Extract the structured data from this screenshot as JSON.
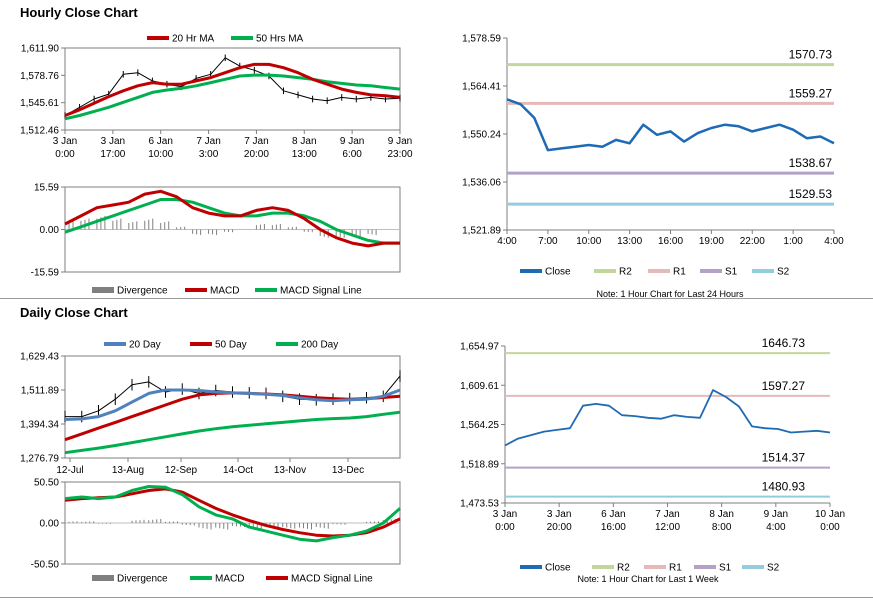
{
  "hourly": {
    "title": "Hourly Close Chart",
    "price": {
      "legend": [
        "20 Hr MA",
        "50 Hrs MA"
      ],
      "y_ticks": [
        "1,611.90",
        "1,578.76",
        "1,545.61",
        "1,512.46"
      ],
      "x_ticks": [
        [
          "3 Jan",
          "0:00"
        ],
        [
          "3 Jan",
          "17:00"
        ],
        [
          "6 Jan",
          "10:00"
        ],
        [
          "7 Jan",
          "3:00"
        ],
        [
          "7 Jan",
          "20:00"
        ],
        [
          "8 Jan",
          "13:00"
        ],
        [
          "9 Jan",
          "6:00"
        ],
        [
          "9 Jan",
          "23:00"
        ]
      ]
    },
    "macd": {
      "y_ticks": [
        "15.59",
        "0.00",
        "-15.59"
      ],
      "legend": [
        "Divergence",
        "MACD",
        "MACD Signal Line"
      ]
    },
    "pivot": {
      "y_ticks": [
        "1,578.59",
        "1,564.41",
        "1,550.24",
        "1,536.06",
        "1,521.89"
      ],
      "x_ticks": [
        "4:00",
        "7:00",
        "10:00",
        "13:00",
        "16:00",
        "19:00",
        "22:00",
        "1:00",
        "4:00"
      ],
      "levels": [
        {
          "name": "R2",
          "label": "1570.73",
          "value": 1570.73,
          "color": "#c3d69b"
        },
        {
          "name": "R1",
          "label": "1559.27",
          "value": 1559.27,
          "color": "#e6b9b8"
        },
        {
          "name": "S1",
          "label": "1538.67",
          "value": 1538.67,
          "color": "#b3a2c7"
        },
        {
          "name": "S2",
          "label": "1529.53",
          "value": 1529.53,
          "color": "#93cddd"
        }
      ],
      "legend": [
        "Close",
        "R2",
        "R1",
        "S1",
        "S2"
      ],
      "note": "Note: 1 Hour Chart for Last 24 Hours"
    }
  },
  "daily": {
    "title": "Daily Close Chart",
    "price": {
      "legend": [
        "20 Day",
        "50 Day",
        "200 Day"
      ],
      "y_ticks": [
        "1,629.43",
        "1,511.89",
        "1,394.34",
        "1,276.79"
      ],
      "x_ticks": [
        "12-Jul",
        "13-Aug",
        "12-Sep",
        "14-Oct",
        "13-Nov",
        "13-Dec"
      ]
    },
    "macd": {
      "y_ticks": [
        "50.50",
        "0.00",
        "-50.50"
      ],
      "legend": [
        "Divergence",
        "MACD",
        "MACD Signal Line"
      ]
    },
    "pivot": {
      "y_ticks": [
        "1,654.97",
        "1,609.61",
        "1,564.25",
        "1,518.89",
        "1,473.53"
      ],
      "x_ticks": [
        [
          "3 Jan",
          "0:00"
        ],
        [
          "3 Jan",
          "20:00"
        ],
        [
          "6 Jan",
          "16:00"
        ],
        [
          "7 Jan",
          "12:00"
        ],
        [
          "8 Jan",
          "8:00"
        ],
        [
          "9 Jan",
          "4:00"
        ],
        [
          "10 Jan",
          "0:00"
        ]
      ],
      "levels": [
        {
          "name": "R2",
          "label": "1646.73",
          "value": 1646.73,
          "color": "#c3d69b"
        },
        {
          "name": "R1",
          "label": "1597.27",
          "value": 1597.27,
          "color": "#e6b9b8"
        },
        {
          "name": "S1",
          "label": "1514.37",
          "value": 1514.37,
          "color": "#b3a2c7"
        },
        {
          "name": "S2",
          "label": "1480.93",
          "value": 1480.93,
          "color": "#93cddd"
        }
      ],
      "legend": [
        "Close",
        "R2",
        "R1",
        "S1",
        "S2"
      ],
      "note": "Note: 1 Hour Chart for Last 1 Week"
    }
  },
  "chart_data": [
    {
      "type": "line",
      "ylim": [
        1512.46,
        1611.9
      ],
      "series": [
        {
          "name": "20 Hr MA",
          "color": "#c00000",
          "values": [
            1530,
            1537,
            1545,
            1553,
            1560,
            1566,
            1570,
            1568,
            1568,
            1572,
            1576,
            1582,
            1588,
            1592,
            1592,
            1588,
            1582,
            1574,
            1568,
            1562,
            1558,
            1555,
            1554,
            1552
          ]
        },
        {
          "name": "50 Hrs MA",
          "color": "#00b050",
          "values": [
            1526,
            1530,
            1535,
            1540,
            1546,
            1552,
            1558,
            1561,
            1563,
            1566,
            1570,
            1574,
            1578,
            1579,
            1579,
            1578,
            1576,
            1574,
            1571,
            1569,
            1567,
            1566,
            1564,
            1562
          ]
        },
        {
          "name": "Close",
          "color": "#000000",
          "values": [
            1530,
            1540,
            1550,
            1556,
            1580,
            1582,
            1572,
            1568,
            1565,
            1575,
            1580,
            1600,
            1590,
            1585,
            1578,
            1560,
            1555,
            1550,
            1548,
            1552,
            1550,
            1552,
            1550,
            1551
          ]
        }
      ]
    },
    {
      "type": "line",
      "ylim": [
        -15.59,
        15.59
      ],
      "series": [
        {
          "name": "MACD",
          "color": "#c00000",
          "values": [
            2,
            5,
            8,
            9,
            10,
            13,
            14,
            12,
            8,
            6,
            5,
            5,
            7,
            8,
            7,
            4,
            0,
            -3,
            -5,
            -6,
            -5,
            -5
          ]
        },
        {
          "name": "MACD Signal Line",
          "color": "#00b050",
          "values": [
            -1,
            1,
            3,
            5,
            7,
            9,
            11,
            11,
            10,
            8,
            6,
            5,
            5,
            6,
            6,
            5,
            3,
            0,
            -2,
            -4,
            -5,
            -5
          ]
        },
        {
          "name": "Divergence",
          "color": "#808080",
          "values": [
            3,
            4,
            5,
            4,
            3,
            4,
            3,
            1,
            -2,
            -2,
            -1,
            0,
            2,
            2,
            1,
            -1,
            -3,
            -3,
            -3,
            -2,
            0,
            0
          ]
        }
      ]
    },
    {
      "type": "line",
      "ylim": [
        1521.89,
        1578.59
      ],
      "x": [
        "4:00",
        "5:00",
        "6:00",
        "7:00",
        "8:00",
        "9:00",
        "10:00",
        "11:00",
        "12:00",
        "13:00",
        "14:00",
        "15:00",
        "16:00",
        "17:00",
        "18:00",
        "19:00",
        "20:00",
        "21:00",
        "22:00",
        "23:00",
        "0:00",
        "1:00",
        "2:00",
        "3:00",
        "4:00"
      ],
      "series": [
        {
          "name": "Close",
          "color": "#1f6ab4",
          "values": [
            1560.5,
            1559.0,
            1555.0,
            1545.5,
            1546.0,
            1546.5,
            1547.0,
            1546.5,
            1548.5,
            1547.5,
            1553.0,
            1550.0,
            1551.0,
            1548.0,
            1550.5,
            1552.0,
            1553.0,
            1552.5,
            1551.0,
            1552.0,
            1553.0,
            1551.5,
            1549.0,
            1549.5,
            1547.5
          ]
        }
      ]
    },
    {
      "type": "line",
      "ylim": [
        1276.79,
        1629.43
      ],
      "series": [
        {
          "name": "20 Day",
          "color": "#4f81bd",
          "values": [
            1410,
            1412,
            1420,
            1440,
            1470,
            1500,
            1512,
            1512,
            1510,
            1505,
            1502,
            1500,
            1497,
            1493,
            1485,
            1478,
            1475,
            1478,
            1480,
            1490,
            1512
          ]
        },
        {
          "name": "50 Day",
          "color": "#c00000",
          "values": [
            1340,
            1360,
            1380,
            1400,
            1420,
            1440,
            1460,
            1480,
            1495,
            1500,
            1502,
            1500,
            1498,
            1495,
            1490,
            1485,
            1482,
            1480,
            1482,
            1486,
            1490
          ]
        },
        {
          "name": "200 Day",
          "color": "#00b050",
          "values": [
            1295,
            1303,
            1311,
            1320,
            1330,
            1340,
            1350,
            1360,
            1370,
            1378,
            1385,
            1390,
            1395,
            1400,
            1405,
            1410,
            1413,
            1415,
            1420,
            1428,
            1435
          ]
        },
        {
          "name": "Close",
          "color": "#000000",
          "values": [
            1420,
            1420,
            1440,
            1480,
            1530,
            1540,
            1505,
            1515,
            1500,
            1510,
            1505,
            1502,
            1500,
            1490,
            1480,
            1478,
            1480,
            1482,
            1485,
            1490,
            1560
          ]
        }
      ]
    },
    {
      "type": "line",
      "ylim": [
        -50.5,
        50.5
      ],
      "series": [
        {
          "name": "MACD",
          "color": "#00b050",
          "values": [
            30,
            32,
            30,
            32,
            40,
            45,
            44,
            35,
            20,
            10,
            5,
            -5,
            -10,
            -15,
            -20,
            -22,
            -18,
            -15,
            -10,
            0,
            18
          ]
        },
        {
          "name": "MACD Signal Line",
          "color": "#c00000",
          "values": [
            28,
            30,
            31,
            32,
            36,
            40,
            42,
            38,
            28,
            18,
            10,
            3,
            -3,
            -8,
            -12,
            -15,
            -16,
            -15,
            -12,
            -5,
            5
          ]
        },
        {
          "name": "Divergence",
          "color": "#808080",
          "values": [
            2,
            2,
            -1,
            0,
            4,
            5,
            2,
            -3,
            -8,
            -8,
            -5,
            -8,
            -7,
            -7,
            -8,
            -7,
            -2,
            0,
            2,
            5,
            13
          ]
        }
      ]
    },
    {
      "type": "line",
      "ylim": [
        1473.53,
        1654.97
      ],
      "series": [
        {
          "name": "Close",
          "color": "#1f6ab4",
          "values": [
            1540,
            1548,
            1552,
            1556,
            1558,
            1560,
            1586,
            1588,
            1586,
            1575,
            1574,
            1572,
            1571,
            1575,
            1573,
            1572,
            1604,
            1596,
            1585,
            1562,
            1560,
            1559,
            1555,
            1556,
            1557,
            1555
          ]
        }
      ]
    }
  ]
}
